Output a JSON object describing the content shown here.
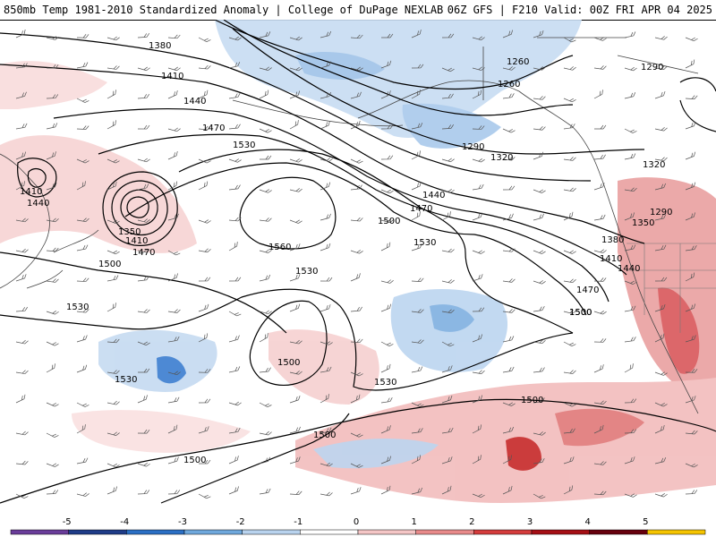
{
  "header": {
    "title_left": "850mb Temp 1981-2010 Standardized Anomaly | College of DuPage NEXLAB",
    "title_right": "06Z GFS | F210 Valid: 00Z FRI APR 04 2025"
  },
  "contour_labels": [
    {
      "id": "c1380a",
      "text": "1380"
    },
    {
      "id": "c1410a",
      "text": "1410"
    },
    {
      "id": "c1440a",
      "text": "1440"
    },
    {
      "id": "c1470a",
      "text": "1470"
    },
    {
      "id": "c1530a",
      "text": "1530"
    },
    {
      "id": "c1560",
      "text": "1560"
    },
    {
      "id": "c1410b",
      "text": "1410"
    },
    {
      "id": "c1440b",
      "text": "1440"
    },
    {
      "id": "c1350a",
      "text": "1350"
    },
    {
      "id": "c1410c",
      "text": "1410"
    },
    {
      "id": "c1470b",
      "text": "1470"
    },
    {
      "id": "c1500a",
      "text": "1500"
    },
    {
      "id": "c1530b",
      "text": "1530"
    },
    {
      "id": "c1530c",
      "text": "1530"
    },
    {
      "id": "c1530d",
      "text": "1530"
    },
    {
      "id": "c1500b",
      "text": "1500"
    },
    {
      "id": "c1530e",
      "text": "1530"
    },
    {
      "id": "c1500c",
      "text": "1500"
    },
    {
      "id": "c1500d",
      "text": "1500"
    },
    {
      "id": "c1500e",
      "text": "1500"
    },
    {
      "id": "c1500f",
      "text": "1500"
    },
    {
      "id": "c1260a",
      "text": "1260"
    },
    {
      "id": "c1260b",
      "text": "1260"
    },
    {
      "id": "c1290a",
      "text": "1290"
    },
    {
      "id": "c1290b",
      "text": "1290"
    },
    {
      "id": "c1320a",
      "text": "1320"
    },
    {
      "id": "c1320b",
      "text": "1320"
    },
    {
      "id": "c1440c",
      "text": "1440"
    },
    {
      "id": "c1470c",
      "text": "1470"
    },
    {
      "id": "c1500g",
      "text": "1500"
    },
    {
      "id": "c1530f",
      "text": "1530"
    },
    {
      "id": "c1290c",
      "text": "1290"
    },
    {
      "id": "c1350b",
      "text": "1350"
    },
    {
      "id": "c1380b",
      "text": "1380"
    },
    {
      "id": "c1410d",
      "text": "1410"
    },
    {
      "id": "c1440d",
      "text": "1440"
    },
    {
      "id": "c1470d",
      "text": "1470"
    },
    {
      "id": "c1500h",
      "text": "1500"
    }
  ],
  "colorbar": {
    "ticks": [
      "-5",
      "-4",
      "-3",
      "-2",
      "-1",
      "0",
      "1",
      "2",
      "3",
      "4",
      "5"
    ],
    "colors": [
      "#6a3d9a",
      "#1f3c88",
      "#2b6fc4",
      "#6fa8dc",
      "#b9d3ee",
      "#ffffff",
      "#f4c6c6",
      "#e88a8a",
      "#d43c3c",
      "#a50f15",
      "#67000d",
      "#f5c400"
    ]
  }
}
